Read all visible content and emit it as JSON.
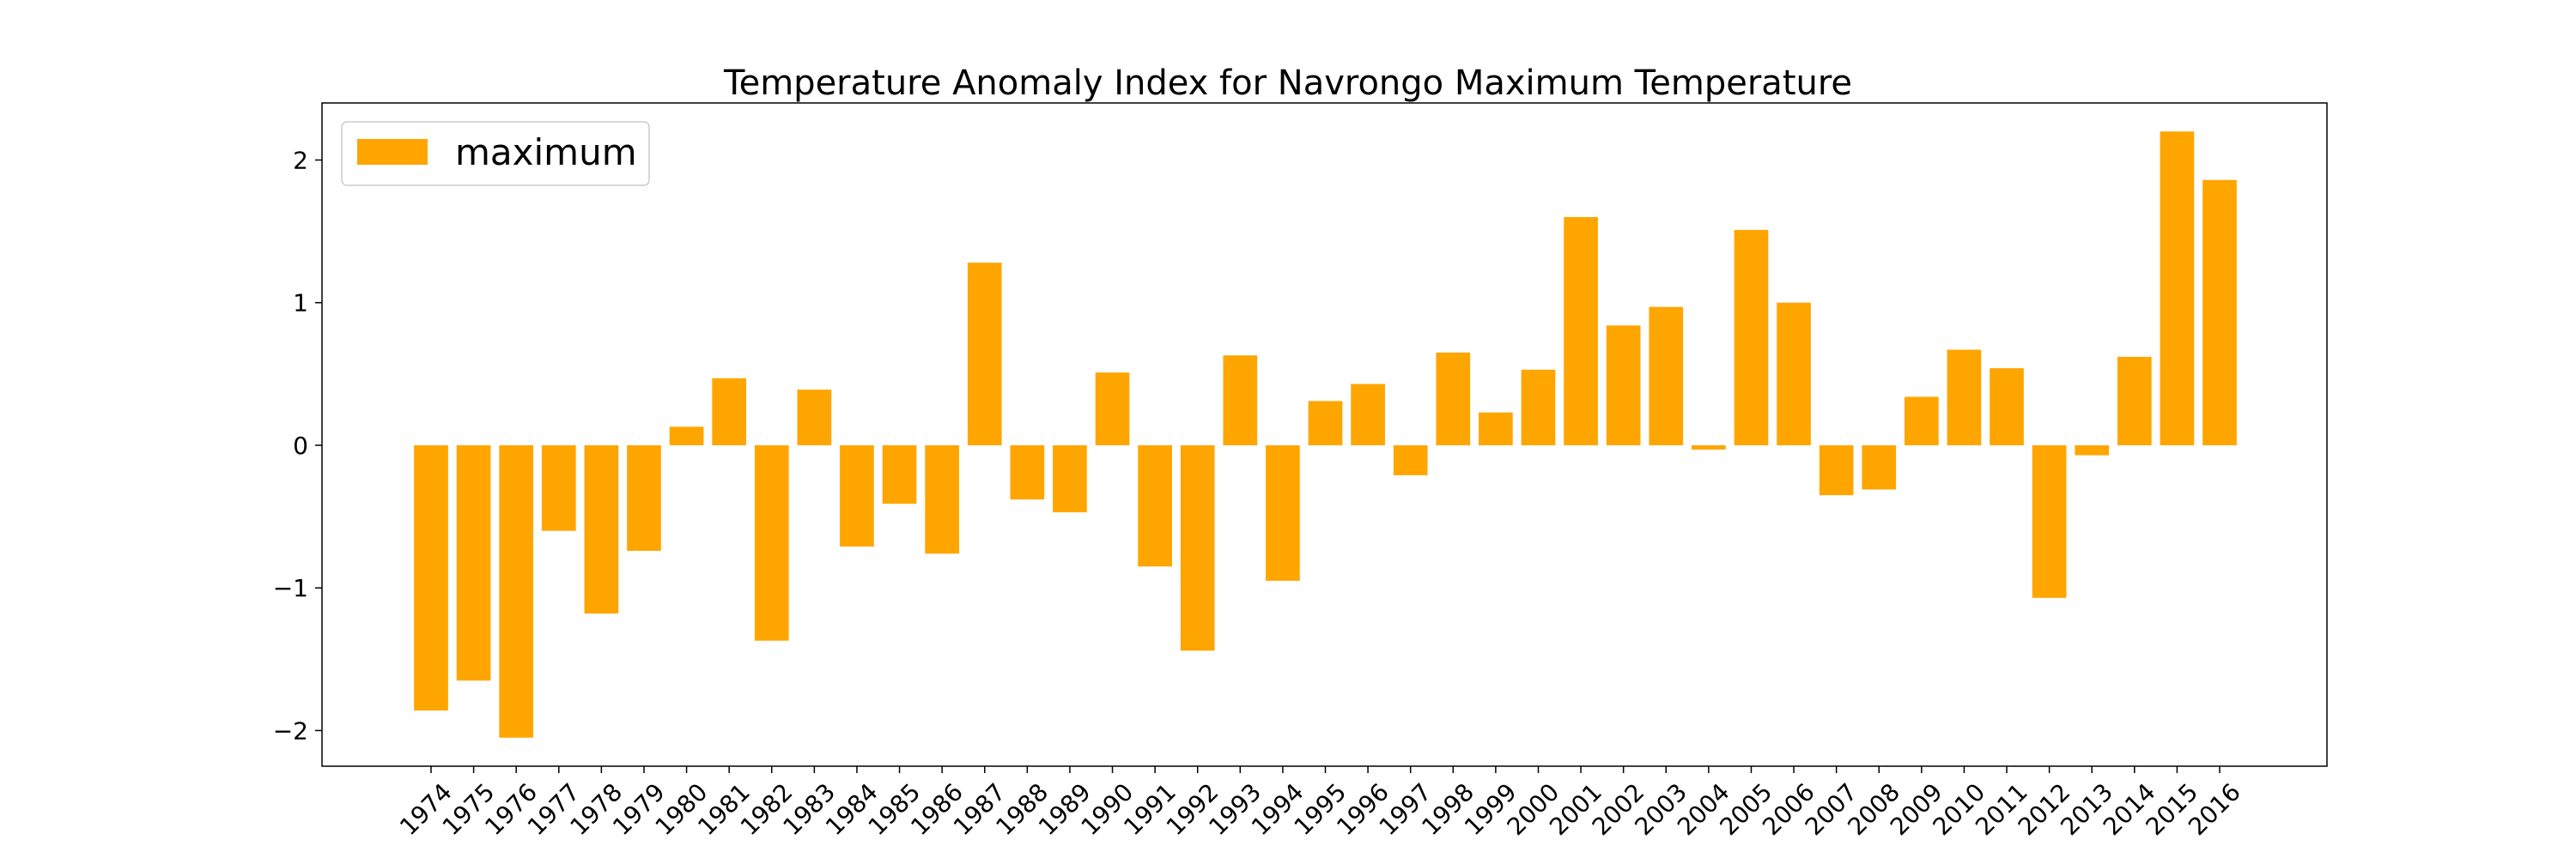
{
  "chart_data": {
    "type": "bar",
    "title": "Temperature Anomaly Index for Navrongo Maximum Temperature",
    "xlabel": "",
    "ylabel": "",
    "categories": [
      "1974",
      "1975",
      "1976",
      "1977",
      "1978",
      "1979",
      "1980",
      "1981",
      "1982",
      "1983",
      "1984",
      "1985",
      "1986",
      "1987",
      "1988",
      "1989",
      "1990",
      "1991",
      "1992",
      "1993",
      "1994",
      "1995",
      "1996",
      "1997",
      "1998",
      "1999",
      "2000",
      "2001",
      "2002",
      "2003",
      "2004",
      "2005",
      "2006",
      "2007",
      "2008",
      "2009",
      "2010",
      "2011",
      "2012",
      "2013",
      "2014",
      "2015",
      "2016"
    ],
    "series": [
      {
        "name": "maximum",
        "color": "#ffa500",
        "values": [
          -1.86,
          -1.65,
          -2.05,
          -0.6,
          -1.18,
          -0.74,
          0.13,
          0.47,
          -1.37,
          0.39,
          -0.71,
          -0.41,
          -0.76,
          1.28,
          -0.38,
          -0.47,
          0.51,
          -0.85,
          -1.44,
          0.63,
          -0.95,
          0.31,
          0.43,
          -0.21,
          0.65,
          0.23,
          0.53,
          1.6,
          0.84,
          0.97,
          -0.03,
          1.51,
          1.0,
          -0.35,
          -0.31,
          0.34,
          0.67,
          0.54,
          -1.07,
          -0.07,
          0.62,
          2.2,
          1.86
        ]
      }
    ],
    "yticks": [
      -2,
      -1,
      0,
      1,
      2
    ],
    "ytick_labels": [
      "−2",
      "−1",
      "0",
      "1",
      "2"
    ],
    "ylim": [
      -2.25,
      2.4
    ],
    "legend": {
      "position": "upper-left",
      "label": "maximum"
    },
    "grid": false
  }
}
